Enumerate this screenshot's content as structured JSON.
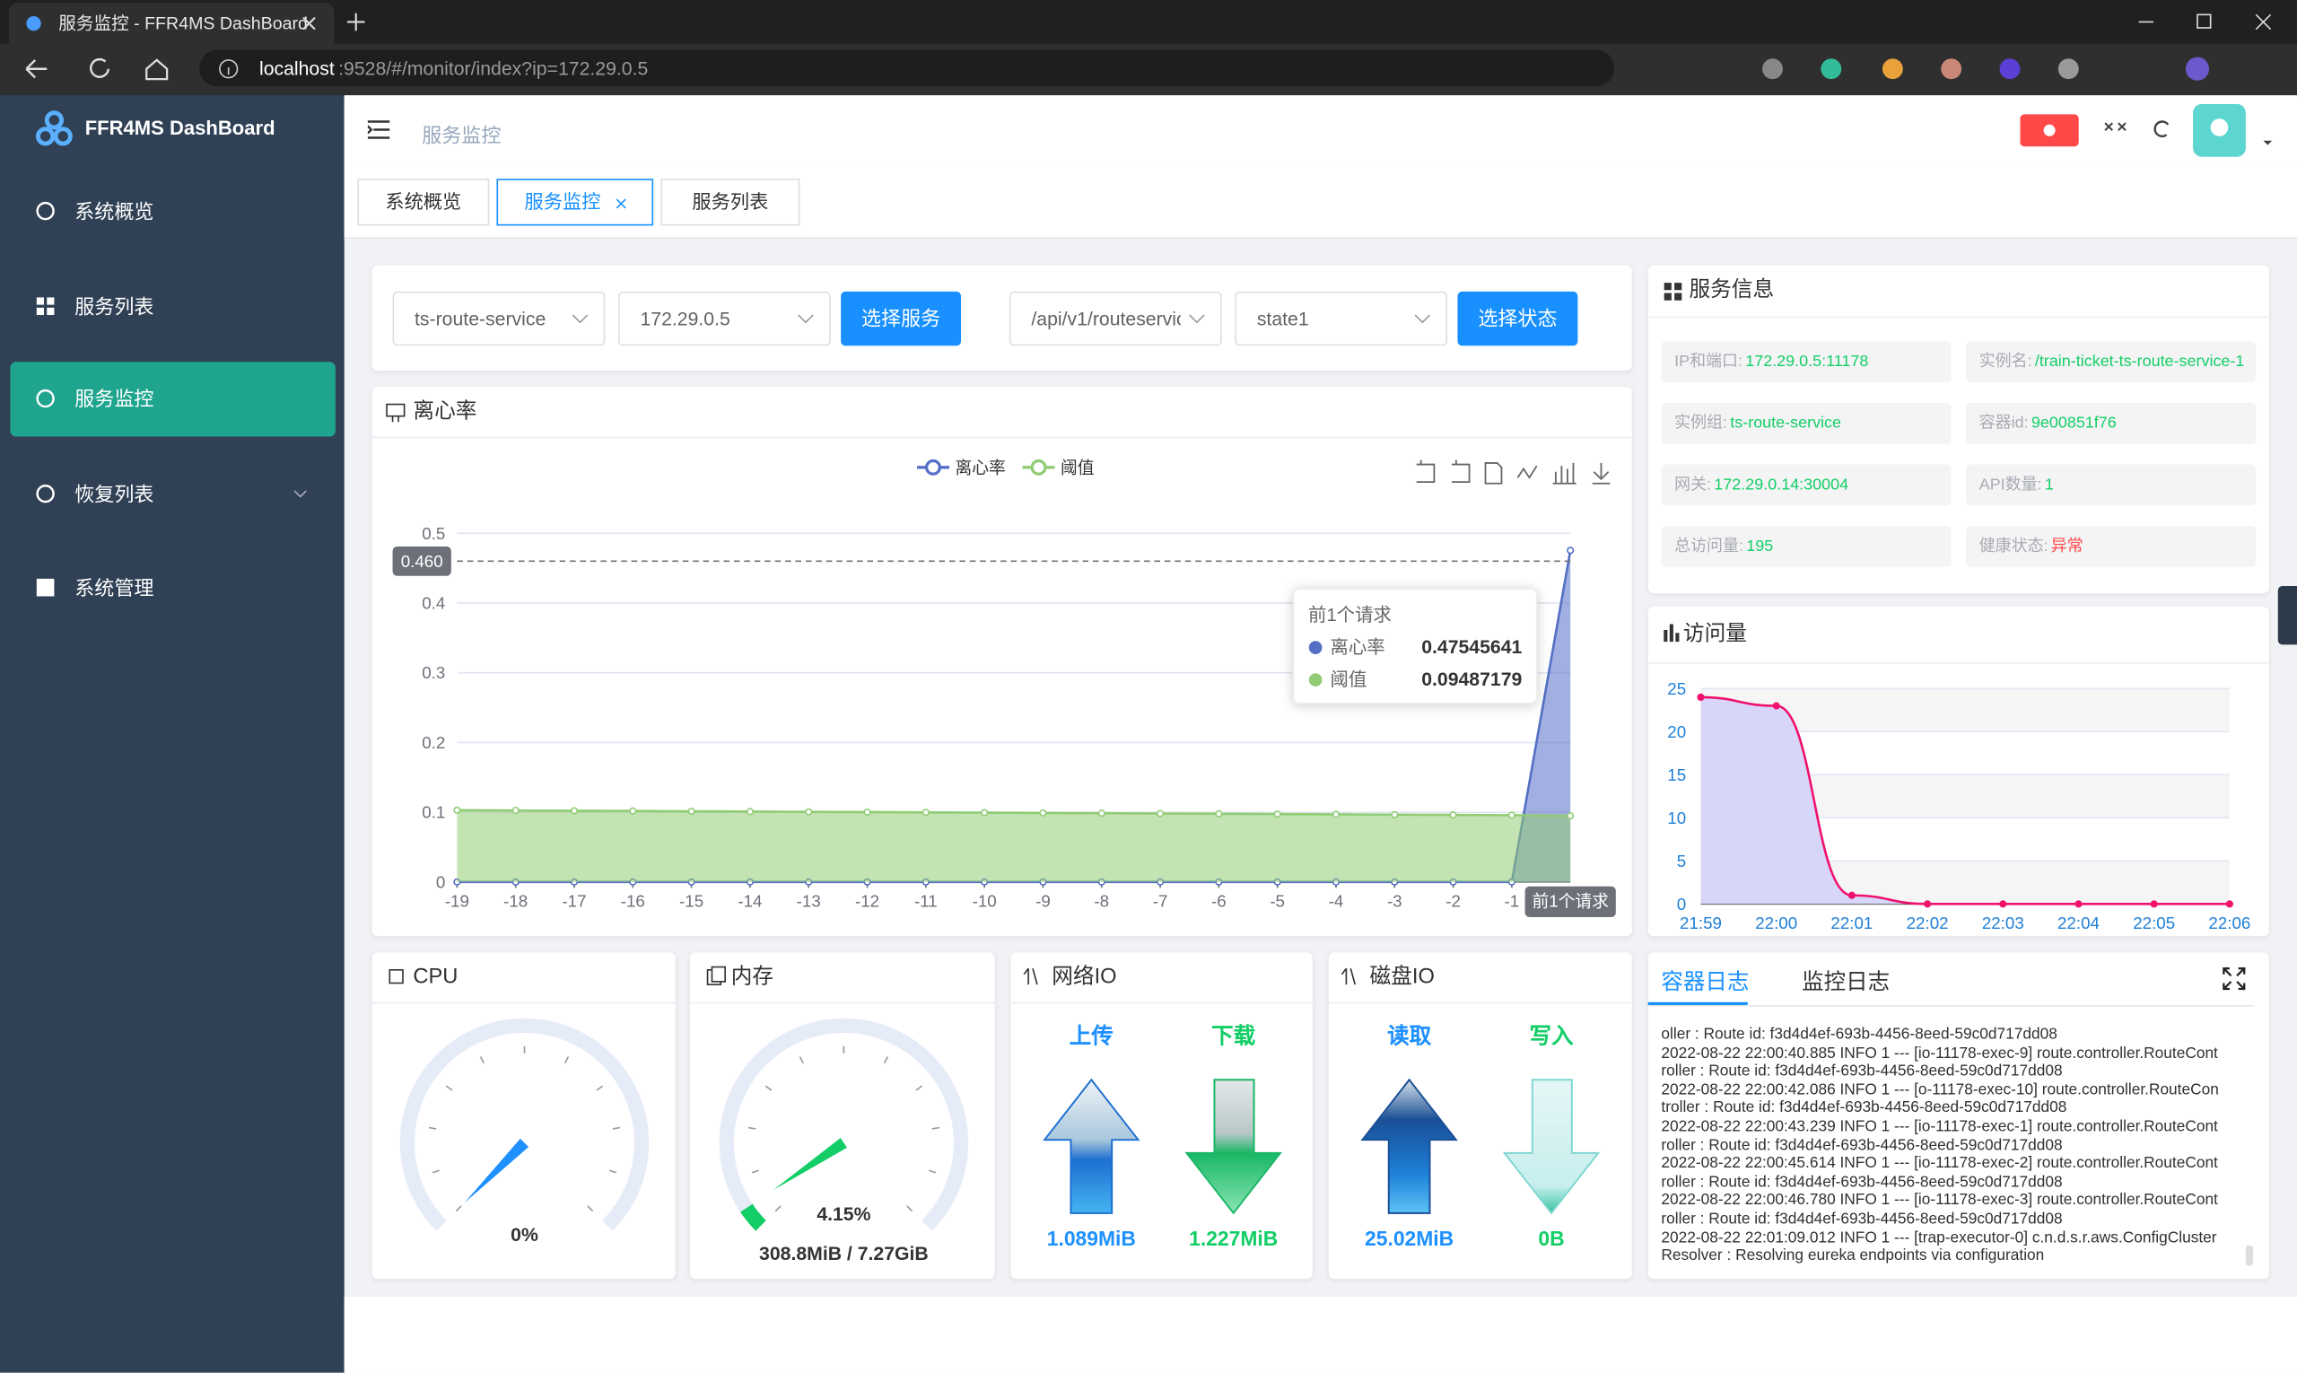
{
  "browser": {
    "tab_title": "服务监控 - FFR4MS DashBoard",
    "url_host": "localhost",
    "url_rest": ":9528/#/monitor/index?ip=172.29.0.5"
  },
  "sidebar": {
    "brand": "FFR4MS DashBoard",
    "menu": [
      "系统概览",
      "服务列表",
      "服务监控",
      "恢复列表",
      "系统管理"
    ]
  },
  "header": {
    "breadcrumb": "服务监控"
  },
  "tabs": [
    "系统概览",
    "服务监控",
    "服务列表"
  ],
  "filters": {
    "service": "ts-route-service",
    "ip": "172.29.0.5",
    "select_service_btn": "选择服务",
    "api": "/api/v1/routeservic",
    "state": "state1",
    "select_state_btn": "选择状态"
  },
  "deviation_chart": {
    "type": "line",
    "title": "离心率",
    "categories": [
      "-19",
      "-18",
      "-17",
      "-16",
      "-15",
      "-14",
      "-13",
      "-12",
      "-11",
      "-10",
      "-9",
      "-8",
      "-7",
      "-6",
      "-5",
      "-4",
      "-3",
      "-2",
      "-1",
      "前1个请求"
    ],
    "series": [
      {
        "name": "离心率",
        "color": "#5470c6",
        "values": [
          0,
          0,
          0,
          0,
          0,
          0,
          0,
          0,
          0,
          0,
          0,
          0,
          0,
          0,
          0,
          0,
          0,
          0,
          0,
          0.47545641
        ]
      },
      {
        "name": "阈值",
        "color": "#91cc75",
        "values": [
          0.103,
          0.1026,
          0.1022,
          0.1018,
          0.1014,
          0.101,
          0.1006,
          0.1002,
          0.0998,
          0.0994,
          0.099,
          0.0986,
          0.0982,
          0.0978,
          0.0974,
          0.097,
          0.0966,
          0.0962,
          0.0958,
          0.09487179
        ]
      }
    ],
    "ylim": [
      0,
      0.5
    ],
    "yticks": [
      0,
      0.1,
      0.2,
      0.3,
      0.4,
      0.5
    ],
    "grid": true,
    "area": true,
    "axis_pointer": {
      "value": 0.46,
      "label": "0.460"
    }
  },
  "visits_chart": {
    "type": "line",
    "title": "访问量",
    "categories": [
      "21:59",
      "22:00",
      "22:01",
      "22:02",
      "22:03",
      "22:04",
      "22:05",
      "22:06"
    ],
    "values": [
      24,
      23,
      1,
      0,
      0,
      0,
      0,
      0
    ],
    "color": "#f0126e",
    "area_color": "#d8d6f8",
    "ylim": [
      0,
      25
    ],
    "yticks": [
      0,
      5,
      10,
      15,
      20,
      25
    ],
    "grid": true,
    "area": true
  },
  "service_info": {
    "title": "服务信息",
    "fields": [
      {
        "label": "IP和端口:",
        "value": "172.29.0.5:11178"
      },
      {
        "label": "实例名:",
        "value": "/train-ticket-ts-route-service-1"
      },
      {
        "label": "实例组:",
        "value": "ts-route-service"
      },
      {
        "label": "容器id:",
        "value": "9e00851f76"
      },
      {
        "label": "网关:",
        "value": "172.29.0.14:30004"
      },
      {
        "label": "API数量:",
        "value": "1"
      },
      {
        "label": "总访问量:",
        "value": "195"
      },
      {
        "label": "健康状态:",
        "value": "异常"
      }
    ]
  },
  "cpu": {
    "type": "gauge",
    "title": "CPU",
    "value": 0,
    "value_label": "0%",
    "ylim": [
      0,
      100
    ],
    "color": "#1e90ff"
  },
  "memory": {
    "type": "gauge",
    "title": "内存",
    "value": 4.15,
    "value_label": "4.15%",
    "detail": "308.8MiB / 7.27GiB",
    "ylim": [
      0,
      100
    ],
    "color": "#13ce66"
  },
  "network_io": {
    "title": "网络IO",
    "items": [
      {
        "label": "上传",
        "value": "1.089MiB"
      },
      {
        "label": "下载",
        "value": "1.227MiB"
      }
    ]
  },
  "disk_io": {
    "title": "磁盘IO",
    "items": [
      {
        "label": "读取",
        "value": "25.02MiB"
      },
      {
        "label": "写入",
        "value": "0B"
      }
    ]
  },
  "logs": {
    "tabs": [
      "容器日志",
      "监控日志"
    ],
    "lines": [
      "oller : Route id: f3d4d4ef-693b-4456-8eed-59c0d717dd08",
      "2022-08-22 22:00:40.885 INFO 1 --- [io-11178-exec-9] route.controller.RouteCont",
      "roller : Route id: f3d4d4ef-693b-4456-8eed-59c0d717dd08",
      "2022-08-22 22:00:42.086 INFO 1 --- [o-11178-exec-10] route.controller.RouteCon",
      "troller : Route id: f3d4d4ef-693b-4456-8eed-59c0d717dd08",
      "2022-08-22 22:00:43.239 INFO 1 --- [io-11178-exec-1] route.controller.RouteCont",
      "roller : Route id: f3d4d4ef-693b-4456-8eed-59c0d717dd08",
      "2022-08-22 22:00:45.614 INFO 1 --- [io-11178-exec-2] route.controller.RouteCont",
      "roller : Route id: f3d4d4ef-693b-4456-8eed-59c0d717dd08",
      "2022-08-22 22:00:46.780 INFO 1 --- [io-11178-exec-3] route.controller.RouteCont",
      "roller : Route id: f3d4d4ef-693b-4456-8eed-59c0d717dd08",
      "2022-08-22 22:01:09.012 INFO 1 --- [trap-executor-0] c.n.d.s.r.aws.ConfigCluster",
      "Resolver : Resolving eureka endpoints via configuration"
    ]
  }
}
